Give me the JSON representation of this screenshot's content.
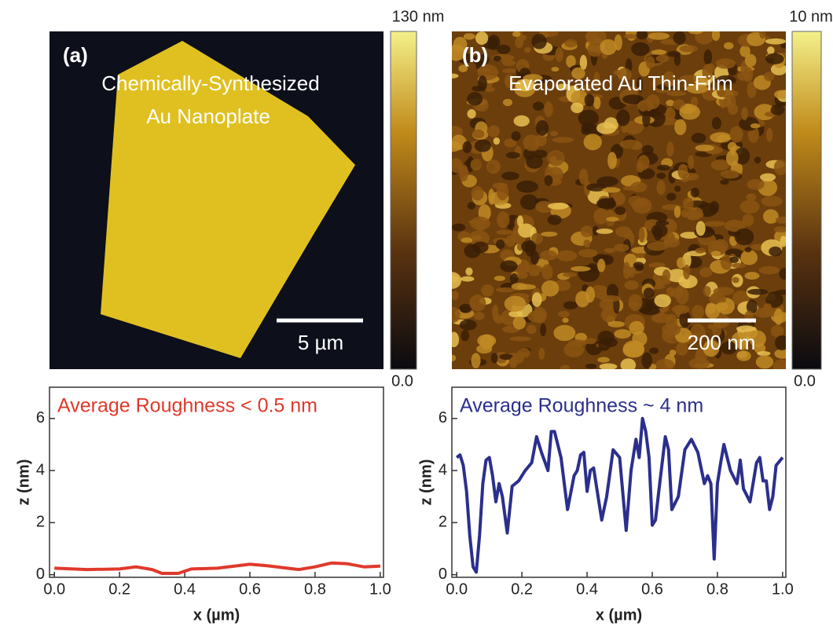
{
  "images": [
    {
      "panel": "(a)",
      "caption": [
        "Chemically-Synthesized",
        "Au Nanoplate"
      ],
      "scale_bar": "5 µm",
      "colorbar_max": "130 nm",
      "colorbar_min": "0.0"
    },
    {
      "panel": "(b)",
      "caption": [
        "Evaporated Au Thin-Film"
      ],
      "scale_bar": "200 nm",
      "colorbar_max": "10 nm",
      "colorbar_min": "0.0"
    }
  ],
  "chart_data": [
    {
      "type": "line",
      "annotation": "Average Roughness < 0.5 nm",
      "x_label": "x (µm)",
      "y_label": "z (nm)",
      "xlim": [
        -0.015,
        1.01
      ],
      "ylim": [
        -0.1,
        7.2
      ],
      "xticks": [
        {
          "value": 0,
          "label": "0.0"
        },
        0.2,
        0.4,
        0.6,
        0.8,
        {
          "value": 1,
          "label": "1.0"
        }
      ],
      "yticks": [
        0,
        2,
        4,
        6
      ],
      "series": [
        {
          "color": "#e0392b",
          "x": [
            0,
            0.1,
            0.2,
            0.25,
            0.3,
            0.33,
            0.38,
            0.42,
            0.5,
            0.6,
            0.65,
            0.75,
            0.8,
            0.85,
            0.9,
            0.95,
            1.0
          ],
          "values": [
            0.25,
            0.2,
            0.22,
            0.3,
            0.2,
            0.05,
            0.05,
            0.22,
            0.25,
            0.4,
            0.35,
            0.2,
            0.3,
            0.45,
            0.42,
            0.3,
            0.33
          ]
        }
      ]
    },
    {
      "type": "line",
      "annotation": "Average Roughness ~ 4 nm",
      "x_label": "x (µm)",
      "y_label": "z (nm)",
      "xlim": [
        -0.015,
        1.01
      ],
      "ylim": [
        -0.1,
        7.2
      ],
      "xticks": [
        {
          "value": 0,
          "label": "0.0"
        },
        0.2,
        0.4,
        0.6,
        0.8,
        {
          "value": 1,
          "label": "1.0"
        }
      ],
      "yticks": [
        0,
        2,
        4,
        6
      ],
      "series": [
        {
          "color": "#2b2f8c",
          "x": [
            0,
            0.01,
            0.02,
            0.03,
            0.04,
            0.05,
            0.06,
            0.07,
            0.08,
            0.09,
            0.1,
            0.11,
            0.12,
            0.13,
            0.14,
            0.155,
            0.17,
            0.19,
            0.21,
            0.23,
            0.245,
            0.26,
            0.28,
            0.29,
            0.3,
            0.32,
            0.34,
            0.36,
            0.37,
            0.38,
            0.39,
            0.4,
            0.41,
            0.42,
            0.43,
            0.445,
            0.46,
            0.48,
            0.5,
            0.52,
            0.535,
            0.55,
            0.56,
            0.57,
            0.58,
            0.59,
            0.6,
            0.61,
            0.62,
            0.64,
            0.65,
            0.66,
            0.68,
            0.7,
            0.72,
            0.74,
            0.76,
            0.77,
            0.78,
            0.79,
            0.8,
            0.81,
            0.82,
            0.84,
            0.86,
            0.87,
            0.88,
            0.9,
            0.92,
            0.93,
            0.94,
            0.95,
            0.96,
            0.97,
            0.98,
            1.0
          ],
          "values": [
            4.5,
            4.6,
            4.2,
            3.2,
            1.5,
            0.3,
            0.1,
            1.5,
            3.5,
            4.4,
            4.5,
            3.8,
            2.8,
            3.5,
            3.0,
            1.6,
            3.4,
            3.6,
            4.0,
            4.3,
            5.3,
            4.7,
            4.0,
            5.5,
            5.5,
            4.5,
            2.5,
            3.8,
            4.0,
            4.6,
            4.7,
            3.2,
            4.0,
            4.1,
            3.3,
            2.1,
            3.0,
            4.8,
            4.5,
            1.7,
            4.0,
            5.2,
            4.5,
            6.0,
            5.5,
            4.5,
            1.9,
            2.1,
            3.2,
            5.3,
            4.8,
            2.5,
            3.0,
            4.8,
            5.2,
            4.7,
            3.5,
            3.8,
            3.5,
            0.6,
            3.5,
            4.3,
            5.0,
            4.0,
            3.5,
            4.4,
            3.3,
            2.8,
            4.3,
            4.5,
            3.6,
            3.6,
            2.5,
            3.0,
            4.2,
            4.5
          ]
        }
      ]
    }
  ]
}
